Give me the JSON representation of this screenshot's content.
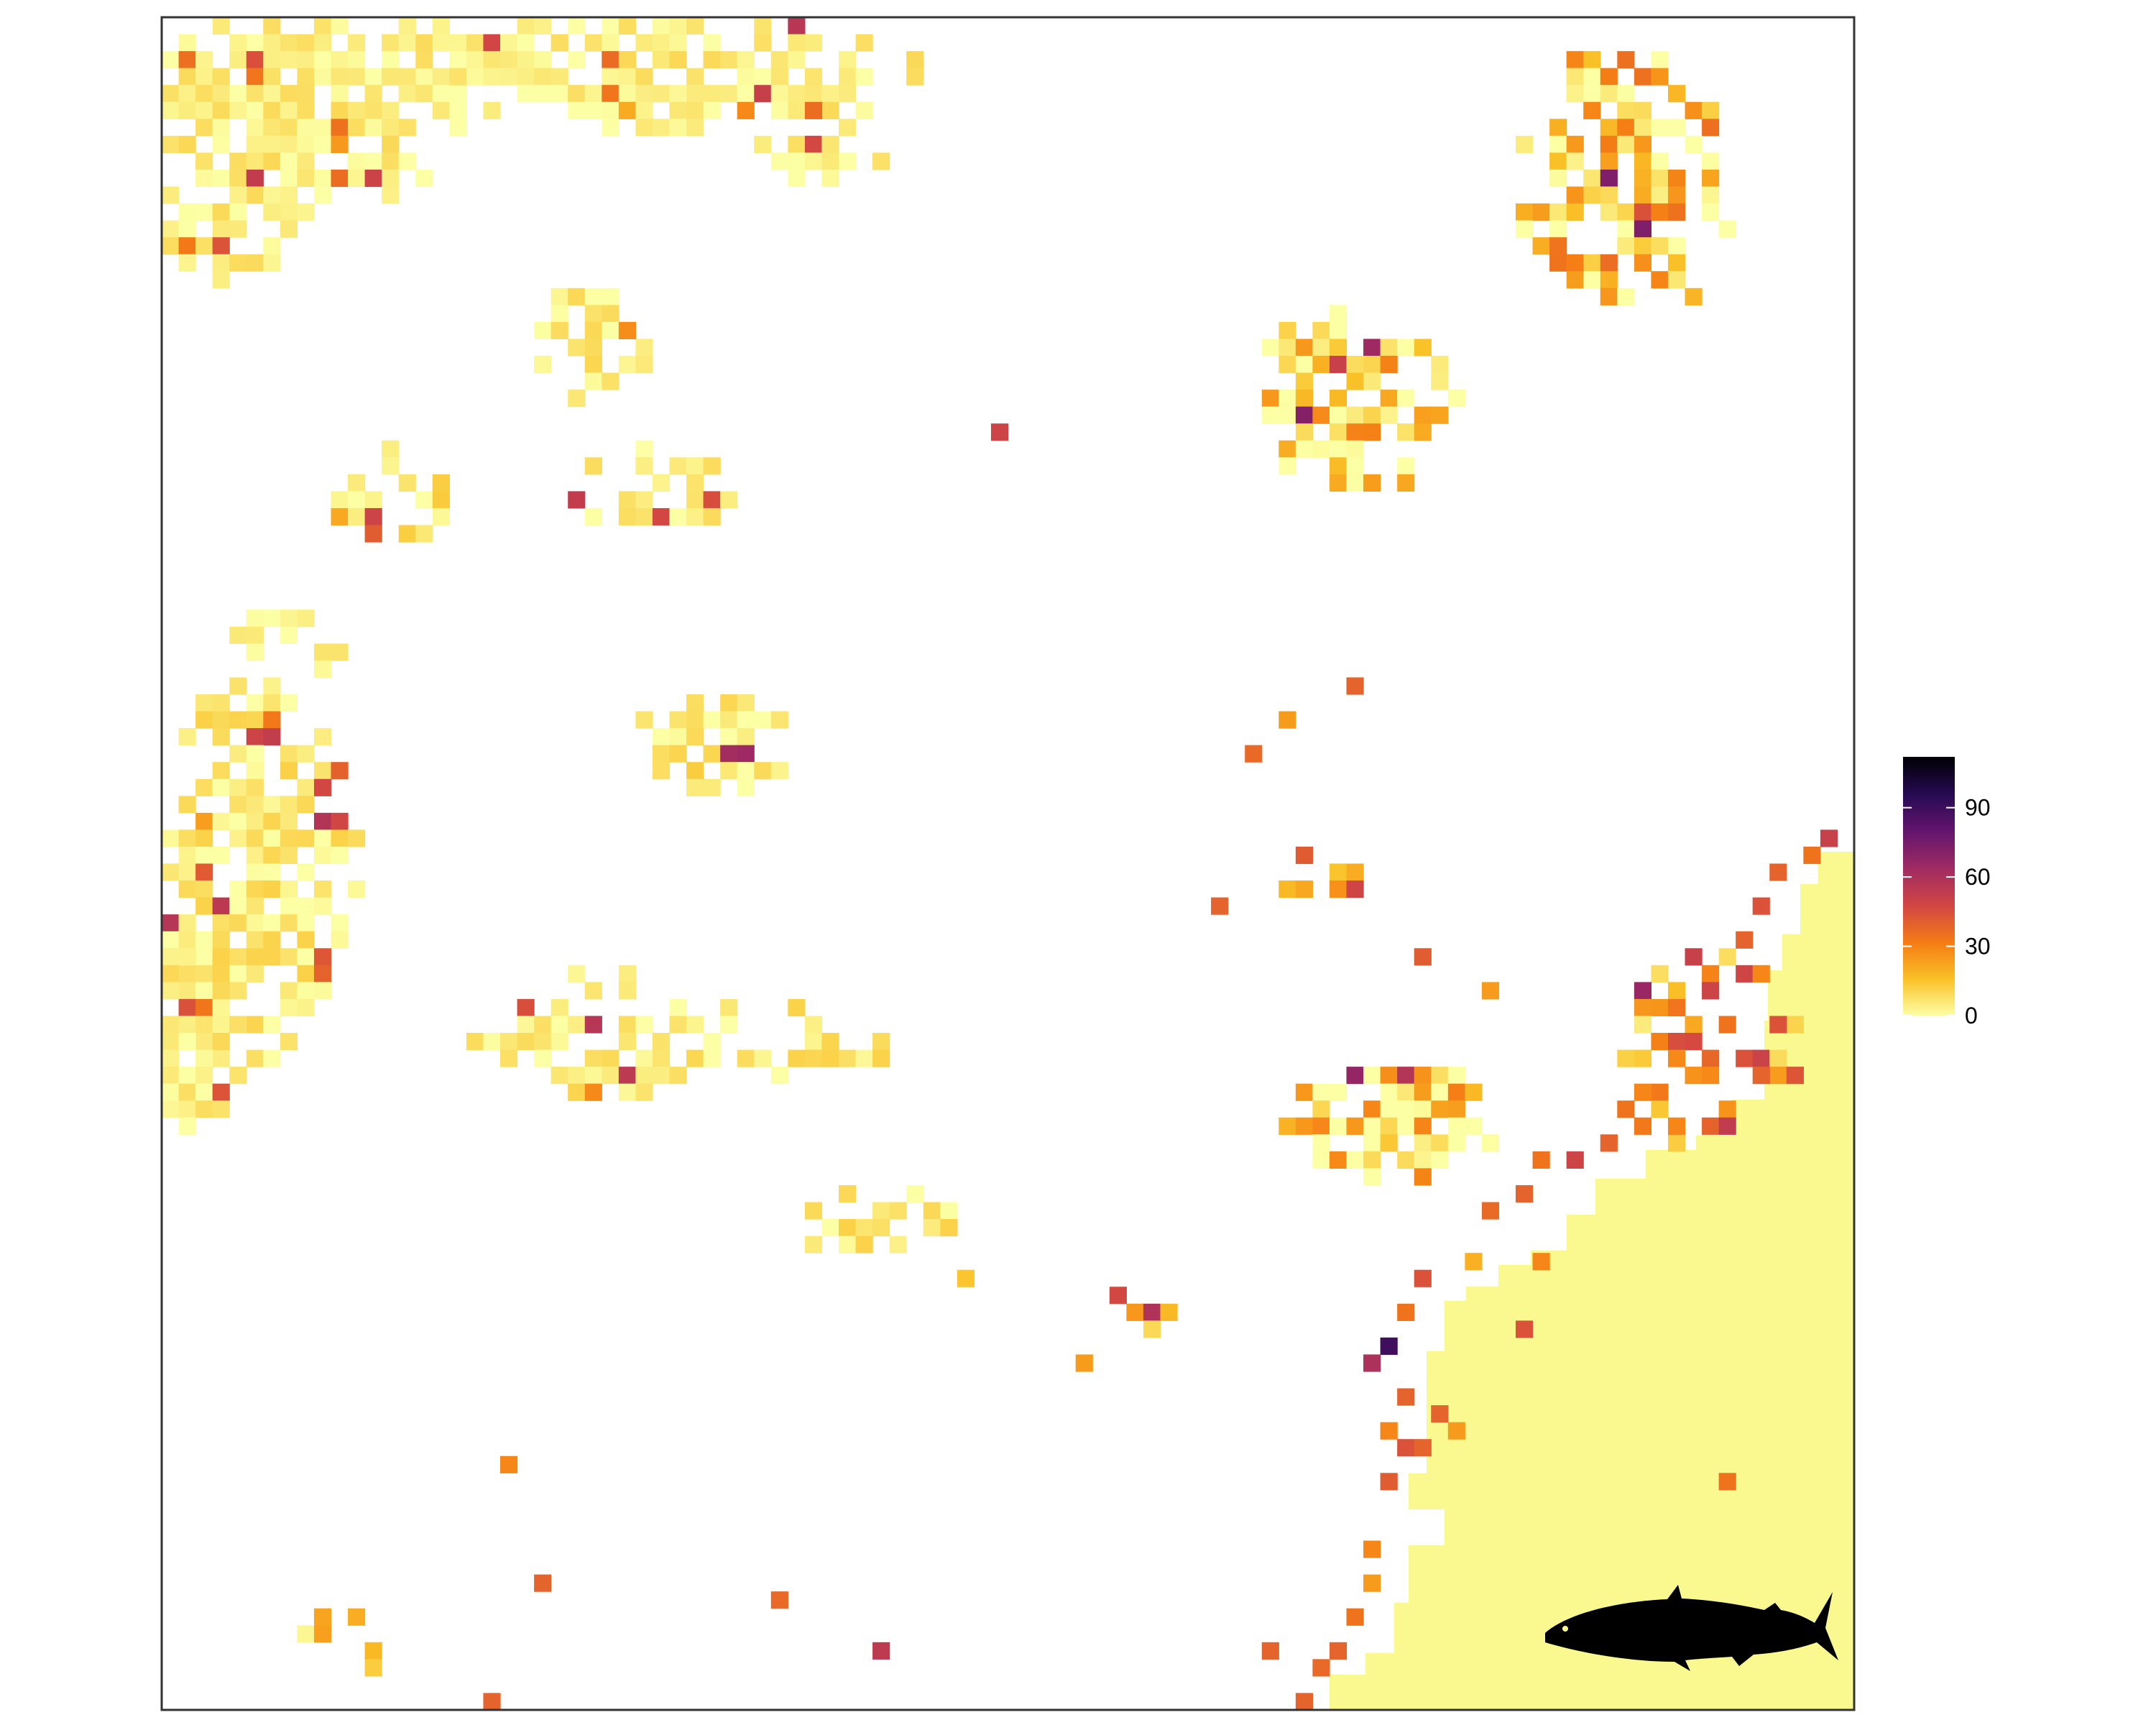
{
  "map": {
    "colorbar": {
      "ticks": [
        0,
        30,
        60,
        90
      ],
      "tick_labels": [
        "0",
        "30",
        "60",
        "90"
      ],
      "min": 0,
      "max": 112,
      "palette": [
        "#FCFFA4",
        "#FAC127",
        "#F57D15",
        "#D44842",
        "#9F2A63",
        "#65156E",
        "#280B54",
        "#000004"
      ]
    },
    "background_color": "#ffffff",
    "land_color": "#F9F98F",
    "icon": "salmon-silhouette-icon"
  }
}
